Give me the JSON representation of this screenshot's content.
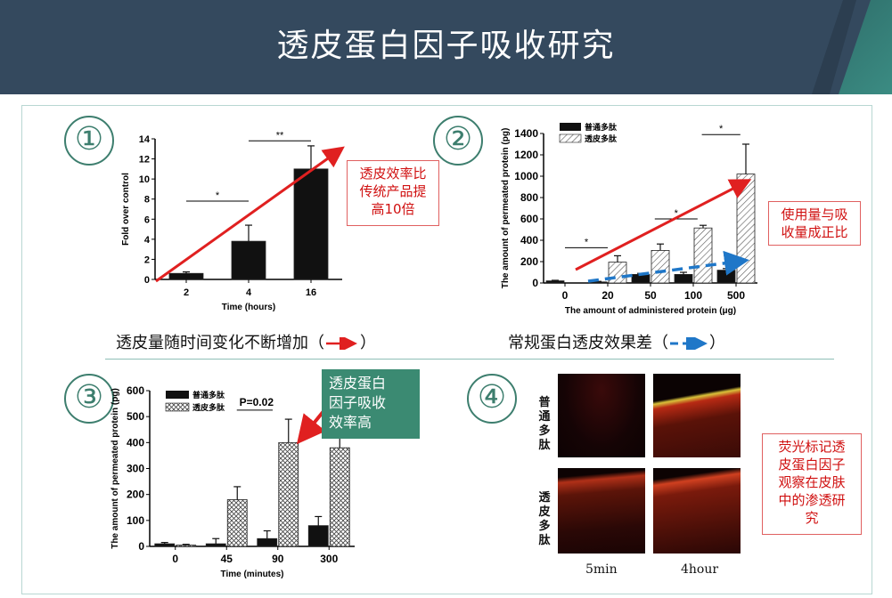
{
  "title": "透皮蛋白因子吸收研究",
  "colors": {
    "header_bg": "#34495e",
    "accent_red": "#e02020",
    "accent_blue": "#1f77c8",
    "teal": "#3b8a72"
  },
  "panels": {
    "p1": {
      "num": "①",
      "caption": "透皮量随时间变化不断增加（",
      "caption_end": "）",
      "note": [
        "透皮效率比",
        "传统产品提",
        "高10倍"
      ]
    },
    "p2": {
      "num": "②",
      "caption": "常规蛋白透皮效果差（",
      "caption_end": "）",
      "note": [
        "使用量与吸",
        "收量成正比"
      ]
    },
    "p3": {
      "num": "③",
      "note": [
        "透皮蛋白",
        "因子吸收",
        "效率高"
      ]
    },
    "p4": {
      "num": "④",
      "row1": "普通多肽",
      "row2": "透皮多肽",
      "t1": "5min",
      "t2": "4hour",
      "note": [
        "荧光标记透",
        "皮蛋白因子",
        "观察在皮肤",
        "中的渗透研",
        "究"
      ]
    }
  },
  "chart_data": [
    {
      "type": "bar",
      "categories": [
        "2",
        "4",
        "16"
      ],
      "values": [
        0.6,
        3.8,
        11.0
      ],
      "errors": [
        0.15,
        1.6,
        2.3
      ],
      "xlabel": "Time (hours)",
      "ylabel": "Fold over control",
      "ylim": [
        0,
        14
      ],
      "yticks": [
        0,
        2,
        4,
        6,
        8,
        10,
        12,
        14
      ],
      "sig": [
        "*",
        "**"
      ]
    },
    {
      "type": "bar",
      "categories": [
        "0",
        "20",
        "50",
        "100",
        "500"
      ],
      "series": [
        {
          "name": "普通多肽",
          "values": [
            20,
            10,
            80,
            80,
            120
          ],
          "errors": [
            5,
            5,
            10,
            20,
            15
          ]
        },
        {
          "name": "透皮多肽",
          "values": [
            0,
            195,
            305,
            515,
            1020
          ],
          "errors": [
            0,
            60,
            60,
            25,
            280
          ]
        }
      ],
      "xlabel": "The amount of administered protein (μg)",
      "ylabel": "The amount of permeated protein (pg)",
      "ylim": [
        0,
        1400
      ],
      "yticks": [
        0,
        200,
        400,
        600,
        800,
        1000,
        1200,
        1400
      ],
      "sig": [
        "*",
        "*",
        "*"
      ]
    },
    {
      "type": "bar",
      "categories": [
        "0",
        "45",
        "90",
        "300"
      ],
      "series": [
        {
          "name": "普通多肽",
          "values": [
            10,
            10,
            30,
            80
          ],
          "errors": [
            5,
            20,
            30,
            35
          ]
        },
        {
          "name": "透皮多肽",
          "values": [
            5,
            180,
            400,
            380
          ],
          "errors": [
            3,
            50,
            90,
            40
          ]
        }
      ],
      "xlabel": "Time (minutes)",
      "ylabel": "The amount of permeated protein (pg)",
      "ylim": [
        0,
        600
      ],
      "yticks": [
        0,
        100,
        200,
        300,
        400,
        500,
        600
      ],
      "annotation": "P=0.02"
    }
  ]
}
